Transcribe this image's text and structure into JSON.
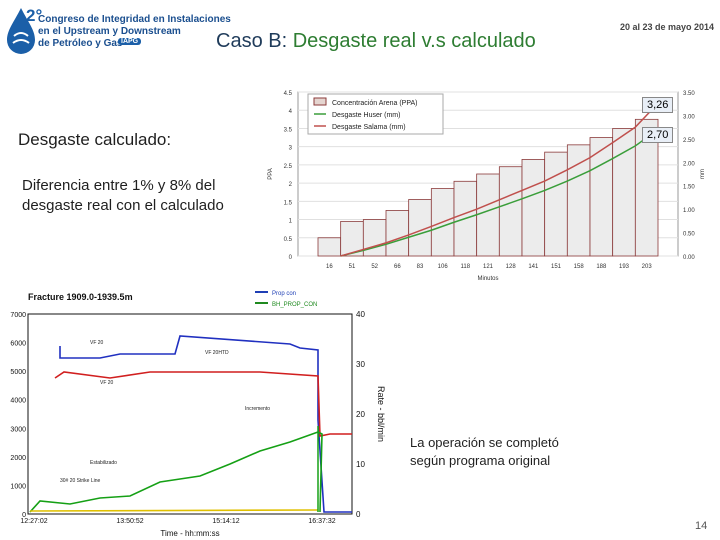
{
  "header": {
    "logo_number": "2°",
    "logo_lines": [
      "Congreso de Integridad en Instalaciones",
      "en el Upstream y Downstream",
      "de Petróleo y Gas"
    ],
    "logo_badge": "IAPG",
    "date": "20 al 23 de mayo 2014",
    "title_prefix": "Caso B: ",
    "title_main": "Desgaste real v.s calculado"
  },
  "body": {
    "calc_label": "Desgaste calculado:",
    "difference_text": "Diferencia entre 1% y 8% del desgaste real con el calculado",
    "conclusion": "La operación se completó según programa original",
    "page_number": "14"
  },
  "colors": {
    "title_blue": "#1f3b5a",
    "title_green": "#2e7d32",
    "huser": "#3a9e3a",
    "salama": "#c0504d"
  },
  "chart_data": [
    {
      "type": "bar",
      "title": "",
      "xlabel": "Minutos",
      "ylabel": "PPA",
      "y2label": "mm",
      "ylim": [
        0,
        4.5
      ],
      "y2lim": [
        0,
        3.5
      ],
      "yticks": [
        "4.5",
        "4",
        "3.5",
        "3",
        "2.5",
        "2",
        "1.5",
        "1",
        "0.5",
        "0"
      ],
      "y2ticks": [
        "3.50",
        "3.00",
        "2.50",
        "2.00",
        "1.50",
        "1.00",
        "0.50",
        "0.00"
      ],
      "categories": [
        "16",
        "51",
        "52",
        "66",
        "83",
        "106",
        "118",
        "121",
        "128",
        "141",
        "151",
        "158",
        "188",
        "193",
        "203"
      ],
      "bars_ppa": [
        0.5,
        0.95,
        1.0,
        1.25,
        1.55,
        1.85,
        2.05,
        2.25,
        2.45,
        2.65,
        2.85,
        3.05,
        3.25,
        3.5,
        3.75
      ],
      "series": [
        {
          "name": "Concentración Arena (PPA)",
          "kind": "bar"
        },
        {
          "name": "Desgaste Huser (mm)",
          "values": [
            0.0,
            0.12,
            0.25,
            0.4,
            0.55,
            0.72,
            0.88,
            1.05,
            1.22,
            1.4,
            1.6,
            1.82,
            2.08,
            2.35,
            2.7
          ]
        },
        {
          "name": "Desgaste Salama (mm)",
          "values": [
            0.0,
            0.14,
            0.28,
            0.45,
            0.63,
            0.82,
            1.0,
            1.2,
            1.4,
            1.6,
            1.84,
            2.1,
            2.42,
            2.75,
            3.26
          ]
        }
      ],
      "annotations": [
        "3,26",
        "2,70"
      ]
    },
    {
      "type": "line",
      "title": "Fracture 1909.0-1939.5m",
      "xlabel": "Time - hh:mm:ss",
      "y2label": "Rate - bbl/min",
      "xticks": [
        "12:27:02",
        "13:50:52",
        "15:14:12",
        "16:37:32"
      ],
      "yticks": [
        "7000",
        "6000",
        "5000",
        "4000",
        "3000",
        "2000",
        "1000",
        "0"
      ],
      "y2ticks": [
        "40",
        "30",
        "20",
        "10",
        "0"
      ],
      "legend": [
        "Prop con",
        "BH_PROP_CON"
      ],
      "annotations": [
        "VF 20",
        "VF 20HTD",
        "VF 20",
        "Incremento",
        "Estabilizado",
        "30# 20 Strike Line"
      ]
    }
  ]
}
